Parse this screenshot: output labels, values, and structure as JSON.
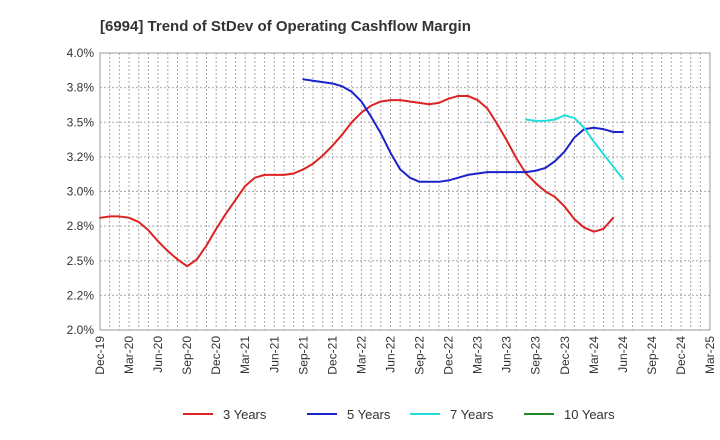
{
  "chart_data": {
    "type": "line",
    "title": "[6994]  Trend of StDev of Operating Cashflow Margin",
    "xlabel": "",
    "ylabel": "",
    "ylim": [
      2.0,
      4.0
    ],
    "y_ticks": [
      "2.0%",
      "2.2%",
      "2.5%",
      "2.8%",
      "3.0%",
      "3.2%",
      "3.5%",
      "3.8%",
      "4.0%"
    ],
    "y_tick_values": [
      2.0,
      2.25,
      2.5,
      2.75,
      3.0,
      3.25,
      3.5,
      3.75,
      4.0
    ],
    "x_ticks": [
      "Dec-19",
      "Mar-20",
      "Jun-20",
      "Sep-20",
      "Dec-20",
      "Mar-21",
      "Jun-21",
      "Sep-21",
      "Dec-21",
      "Mar-22",
      "Jun-22",
      "Sep-22",
      "Dec-22",
      "Mar-23",
      "Jun-23",
      "Sep-23",
      "Dec-23",
      "Mar-24",
      "Jun-24",
      "Sep-24",
      "Dec-24",
      "Mar-25"
    ],
    "grid": true,
    "legend_position": "bottom",
    "series": [
      {
        "name": "3 Years",
        "color": "#dd2222",
        "start_index": 0,
        "values": [
          2.81,
          2.82,
          2.82,
          2.81,
          2.78,
          2.72,
          2.64,
          2.57,
          2.51,
          2.46,
          2.51,
          2.61,
          2.73,
          2.84,
          2.94,
          3.04,
          3.1,
          3.12,
          3.12,
          3.12,
          3.13,
          3.16,
          3.2,
          3.26,
          3.33,
          3.41,
          3.5,
          3.57,
          3.62,
          3.65,
          3.66,
          3.66,
          3.65,
          3.64,
          3.63,
          3.64,
          3.67,
          3.69,
          3.69,
          3.66,
          3.6,
          3.49,
          3.37,
          3.24,
          3.13,
          3.06,
          3.0,
          2.96,
          2.89,
          2.8,
          2.74,
          2.71,
          2.73,
          2.81
        ]
      },
      {
        "name": "5 Years",
        "color": "#1a22cc",
        "start_index": 21,
        "values": [
          3.81,
          3.8,
          3.79,
          3.78,
          3.76,
          3.72,
          3.65,
          3.54,
          3.42,
          3.28,
          3.16,
          3.1,
          3.07,
          3.07,
          3.07,
          3.08,
          3.1,
          3.12,
          3.13,
          3.14,
          3.14,
          3.14,
          3.14,
          3.14,
          3.15,
          3.17,
          3.22,
          3.29,
          3.39,
          3.45,
          3.46,
          3.45,
          3.43,
          3.43
        ]
      },
      {
        "name": "7 Years",
        "color": "#22dddd",
        "start_index": 44,
        "values": [
          3.52,
          3.51,
          3.51,
          3.52,
          3.55,
          3.53,
          3.46,
          3.36,
          3.27,
          3.18,
          3.09
        ]
      },
      {
        "name": "10 Years",
        "color": "#228822",
        "start_index": 0,
        "values": []
      }
    ]
  }
}
